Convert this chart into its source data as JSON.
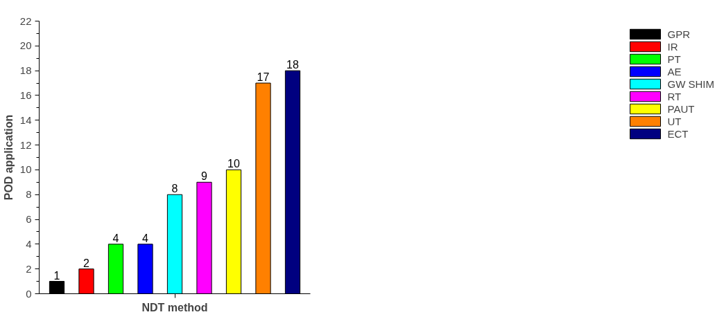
{
  "chart_data": {
    "type": "bar",
    "xlabel": "NDT method",
    "ylabel": "POD application",
    "categories": [
      null,
      null,
      null,
      null,
      null,
      null,
      null,
      null,
      null
    ],
    "series": [
      {
        "name": "GPR",
        "color": "#000000",
        "values": [
          1,
          null,
          null,
          null,
          null,
          null,
          null,
          null,
          null
        ]
      },
      {
        "name": "IR",
        "color": "#ff0000",
        "values": [
          null,
          2,
          null,
          null,
          null,
          null,
          null,
          null,
          null
        ]
      },
      {
        "name": "PT",
        "color": "#00ff00",
        "values": [
          null,
          null,
          4,
          null,
          null,
          null,
          null,
          null,
          null
        ]
      },
      {
        "name": "AE",
        "color": "#0000ff",
        "values": [
          null,
          null,
          null,
          4,
          null,
          null,
          null,
          null,
          null
        ]
      },
      {
        "name": "GW SHIM",
        "color": "#00ffff",
        "values": [
          null,
          null,
          null,
          null,
          8,
          null,
          null,
          null,
          null
        ]
      },
      {
        "name": "RT",
        "color": "#ff00ff",
        "values": [
          null,
          null,
          null,
          null,
          null,
          9,
          null,
          null,
          null
        ]
      },
      {
        "name": "PAUT",
        "color": "#ffff00",
        "values": [
          null,
          null,
          null,
          null,
          null,
          null,
          10,
          null,
          null
        ]
      },
      {
        "name": "UT",
        "color": "#ff8000",
        "values": [
          null,
          null,
          null,
          null,
          null,
          null,
          null,
          17,
          null
        ]
      },
      {
        "name": "ECT",
        "color": "#000080",
        "values": [
          null,
          null,
          null,
          null,
          null,
          null,
          null,
          null,
          18
        ]
      }
    ],
    "ylim": [
      0,
      22
    ],
    "yticks": [
      0,
      2,
      4,
      6,
      8,
      10,
      12,
      14,
      16,
      18,
      20,
      22
    ],
    "data_labels": true,
    "legend": "right",
    "grid": false
  }
}
